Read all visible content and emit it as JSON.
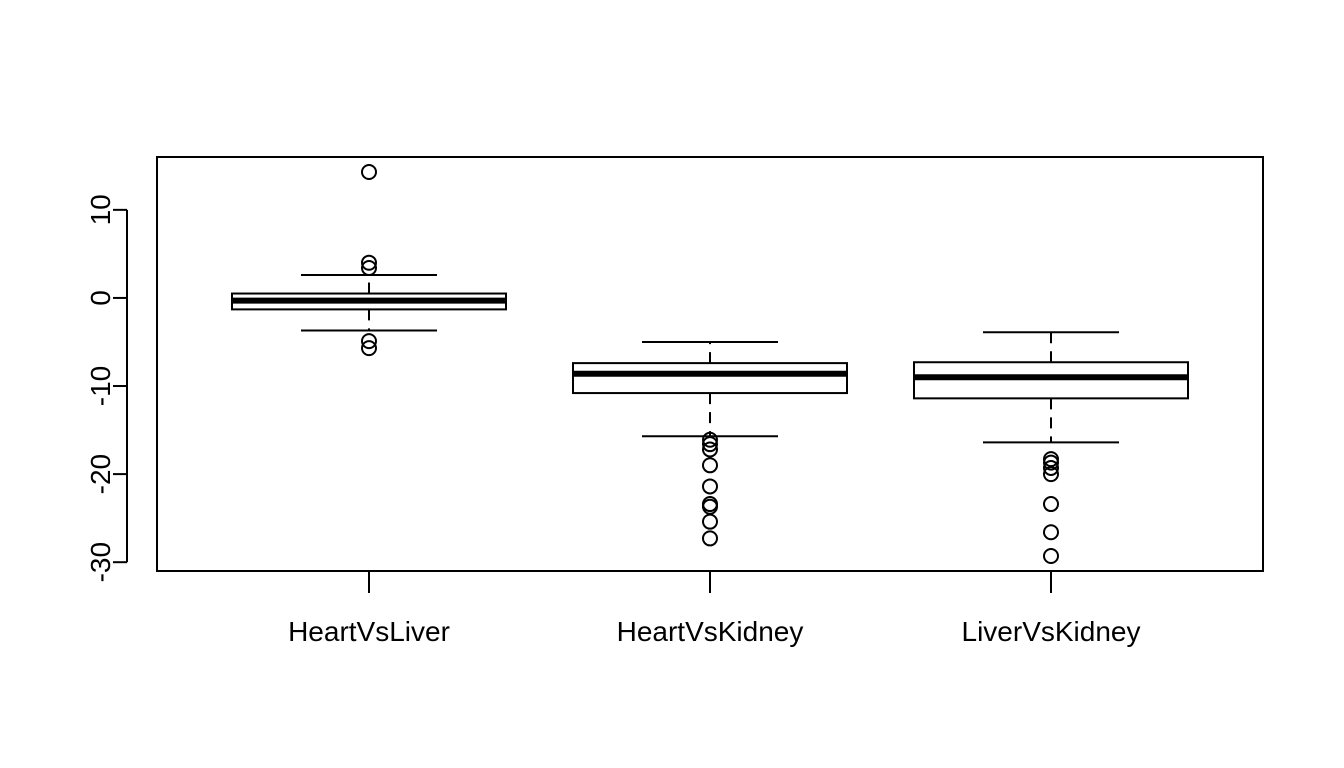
{
  "chart_data": {
    "type": "box",
    "title": "",
    "xlabel": "",
    "ylabel": "",
    "ylim": [
      -31,
      16
    ],
    "y_ticks": [
      -30,
      -20,
      -10,
      0,
      10
    ],
    "y_tick_labels": [
      "-30",
      "-20",
      "-10",
      "0",
      "10"
    ],
    "grid": false,
    "legend": "none",
    "categories": [
      "HeartVsLiver",
      "HeartVsKidney",
      "LiverVsKidney"
    ],
    "boxes": [
      {
        "name": "HeartVsLiver",
        "whisker_low": -3.7,
        "q1": -1.3,
        "median": -0.3,
        "q3": 0.5,
        "whisker_high": 2.6,
        "outliers": [
          14.3,
          4.0,
          3.4,
          -4.9,
          -5.7
        ]
      },
      {
        "name": "HeartVsKidney",
        "whisker_low": -15.7,
        "q1": -10.8,
        "median": -8.6,
        "q3": -7.4,
        "whisker_high": -5.0,
        "outliers": [
          -16.1,
          -16.6,
          -17.2,
          -19.0,
          -21.4,
          -23.4,
          -23.7,
          -25.4,
          -27.3
        ]
      },
      {
        "name": "LiverVsKidney",
        "whisker_low": -16.4,
        "q1": -11.4,
        "median": -9.0,
        "q3": -7.3,
        "whisker_high": -3.9,
        "outliers": [
          -18.3,
          -18.7,
          -19.3,
          -20.0,
          -23.4,
          -26.6,
          -29.3
        ]
      }
    ],
    "colors": {
      "stroke": "#000000",
      "fill": "#ffffff",
      "background": "#ffffff"
    }
  }
}
